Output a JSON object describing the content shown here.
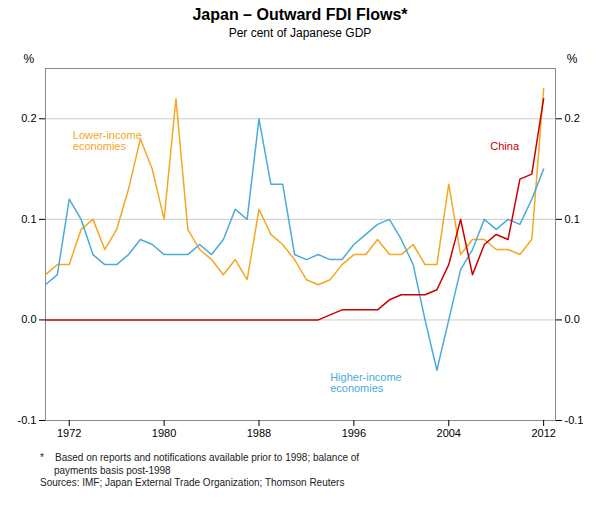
{
  "chart_data": {
    "type": "line",
    "title": "Japan – Outward FDI Flows*",
    "subtitle": "Per cent of Japanese GDP",
    "ylabel": "%",
    "y2label": "%",
    "footnote": "*    Based on reports and notifications available prior to 1998; balance of\n     payments basis post-1998\nSources: IMF; Japan External Trade Organization; Thomson Reuters",
    "x": [
      1970,
      1971,
      1972,
      1973,
      1974,
      1975,
      1976,
      1977,
      1978,
      1979,
      1980,
      1981,
      1982,
      1983,
      1984,
      1985,
      1986,
      1987,
      1988,
      1989,
      1990,
      1991,
      1992,
      1993,
      1994,
      1995,
      1996,
      1997,
      1998,
      1999,
      2000,
      2001,
      2002,
      2003,
      2004,
      2005,
      2006,
      2007,
      2008,
      2009,
      2010,
      2011,
      2012
    ],
    "series": [
      {
        "name": "Lower-income\neconomies",
        "color": "#F5A623",
        "values": [
          0.045,
          0.055,
          0.055,
          0.09,
          0.1,
          0.07,
          0.09,
          0.13,
          0.18,
          0.15,
          0.1,
          0.22,
          0.09,
          0.07,
          0.06,
          0.045,
          0.06,
          0.04,
          0.11,
          0.085,
          0.075,
          0.06,
          0.04,
          0.035,
          0.04,
          0.055,
          0.065,
          0.065,
          0.08,
          0.065,
          0.065,
          0.075,
          0.055,
          0.055,
          0.135,
          0.065,
          0.08,
          0.08,
          0.07,
          0.07,
          0.065,
          0.08,
          0.23
        ]
      },
      {
        "name": "Higher-income\neconomies",
        "color": "#4AABDB",
        "values": [
          0.035,
          0.045,
          0.12,
          0.1,
          0.065,
          0.055,
          0.055,
          0.065,
          0.08,
          0.075,
          0.065,
          0.065,
          0.065,
          0.075,
          0.065,
          0.08,
          0.11,
          0.1,
          0.2,
          0.135,
          0.135,
          0.065,
          0.06,
          0.065,
          0.06,
          0.06,
          0.075,
          0.085,
          0.095,
          0.1,
          0.08,
          0.055,
          0.0,
          -0.05,
          0.0,
          0.05,
          0.07,
          0.1,
          0.09,
          0.1,
          0.095,
          0.12,
          0.15
        ]
      },
      {
        "name": "China",
        "color": "#CC0000",
        "values": [
          0.0,
          0.0,
          0.0,
          0.0,
          0.0,
          0.0,
          0.0,
          0.0,
          0.0,
          0.0,
          0.0,
          0.0,
          0.0,
          0.0,
          0.0,
          0.0,
          0.0,
          0.0,
          0.0,
          0.0,
          0.0,
          0.0,
          0.0,
          0.0,
          0.005,
          0.01,
          0.01,
          0.01,
          0.01,
          0.02,
          0.025,
          0.025,
          0.025,
          0.03,
          0.055,
          0.1,
          0.045,
          0.075,
          0.085,
          0.08,
          0.14,
          0.145,
          0.22
        ]
      }
    ],
    "annotations": [
      {
        "text": "Lower-income\neconomies",
        "x": 1972.3,
        "y": 0.178,
        "color": "#F5A623"
      },
      {
        "text": "Higher-income\neconomies",
        "x": 1994.0,
        "y": -0.063,
        "color": "#4AABDB"
      },
      {
        "text": "China",
        "x": 2007.5,
        "y": 0.172,
        "color": "#CC0000"
      }
    ],
    "xlim": [
      1970,
      2013
    ],
    "xticks": [
      1972,
      1980,
      1988,
      1996,
      2004,
      2012
    ],
    "ylim": [
      -0.1,
      0.25
    ],
    "yticks": [
      -0.1,
      {
        "value": 0.0,
        "label": "0.0"
      },
      0.1,
      0.2
    ],
    "y2lim": [
      -0.1,
      0.25
    ],
    "y2ticks": [
      -0.1,
      {
        "value": 0.0,
        "label": "0.0"
      },
      0.1,
      0.2
    ],
    "grid": true
  }
}
